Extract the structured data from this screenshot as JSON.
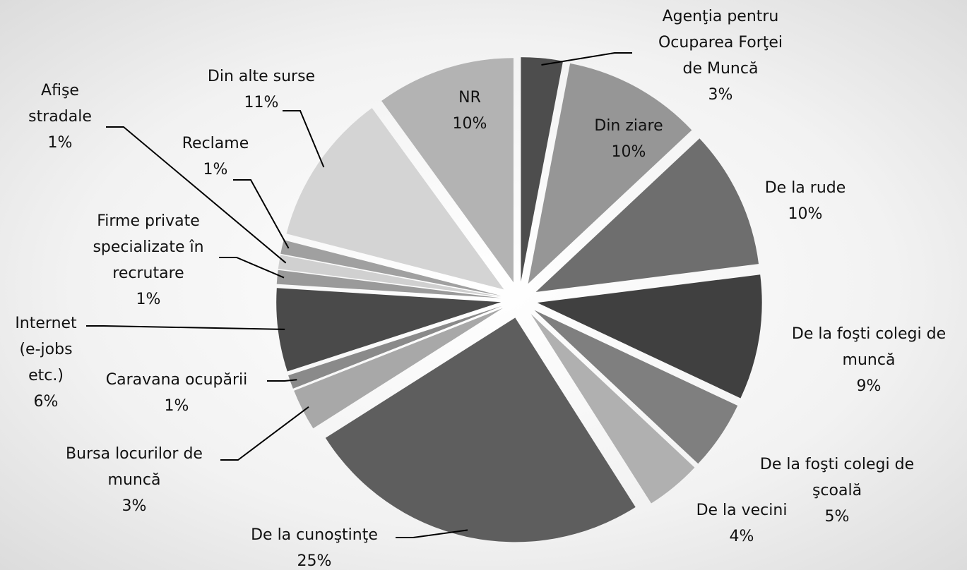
{
  "chart_data": {
    "type": "pie",
    "categories": [
      "Agenţia pentru Ocuparea Forţei de Muncă",
      "Din ziare",
      "De la rude",
      "De la foşti colegi de muncă",
      "De la foşti colegi de şcoală",
      "De la vecini",
      "De la cunoştinţe",
      "Bursa locurilor de muncă",
      "Caravana ocupării",
      "Internet (e-jobs etc.)",
      "Firme private specializate în recrutare",
      "Afişe stradale",
      "Reclame",
      "Din alte surse",
      "NR"
    ],
    "values": [
      3,
      10,
      10,
      9,
      5,
      4,
      25,
      3,
      1,
      6,
      1,
      1,
      1,
      11,
      10
    ],
    "value_labels": [
      "3%",
      "10%",
      "10%",
      "9%",
      "5%",
      "4%",
      "25%",
      "3%",
      "1%",
      "6%",
      "1%",
      "1%",
      "1%",
      "11%",
      "10%"
    ],
    "colors": [
      "#4d4d4d",
      "#969696",
      "#6e6e6e",
      "#404040",
      "#7f7f7f",
      "#b0b0b0",
      "#5e5e5e",
      "#a8a8a8",
      "#8a8a8a",
      "#4a4a4a",
      "#9a9a9a",
      "#d0d0d0",
      "#a0a0a0",
      "#d4d4d4",
      "#b3b3b3"
    ]
  }
}
